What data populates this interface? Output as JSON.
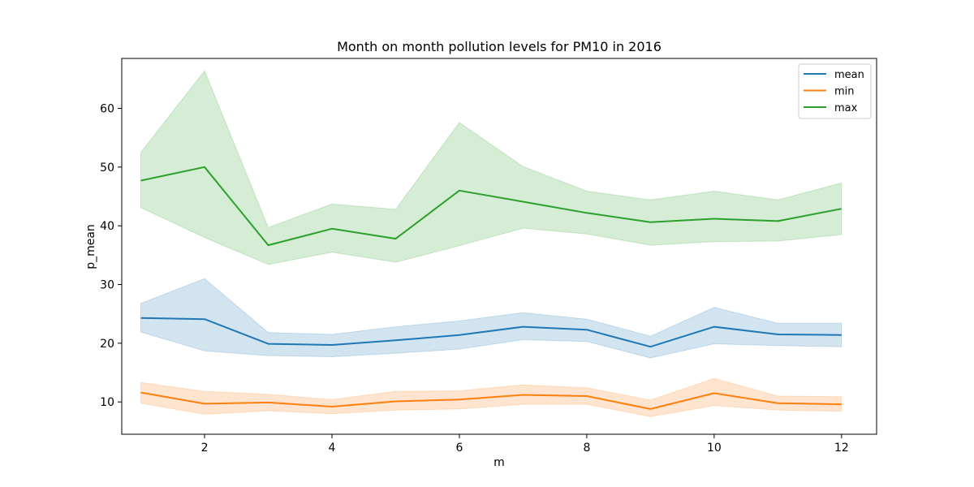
{
  "chart_data": {
    "type": "line",
    "title": "Month on month pollution levels for PM10 in 2016",
    "xlabel": "m",
    "ylabel": "p_mean",
    "x": [
      1,
      2,
      3,
      4,
      5,
      6,
      7,
      8,
      9,
      10,
      11,
      12
    ],
    "xlim": [
      0.7,
      12.55
    ],
    "ylim": [
      4.5,
      68.5
    ],
    "xticks": [
      2,
      4,
      6,
      8,
      10,
      12
    ],
    "yticks": [
      10,
      20,
      30,
      40,
      50,
      60
    ],
    "grid": false,
    "legend_position": "top-right",
    "series": [
      {
        "name": "mean",
        "color": "#1f77b4",
        "values": [
          24.3,
          24.1,
          19.9,
          19.7,
          20.5,
          21.4,
          22.8,
          22.3,
          19.4,
          22.8,
          21.5,
          21.4
        ],
        "ci_lower": [
          21.9,
          18.7,
          17.9,
          17.7,
          18.3,
          19.0,
          20.6,
          20.3,
          17.5,
          19.9,
          19.6,
          19.4
        ],
        "ci_upper": [
          26.8,
          31.0,
          21.8,
          21.5,
          22.8,
          23.8,
          25.2,
          24.1,
          21.2,
          26.1,
          23.4,
          23.4
        ]
      },
      {
        "name": "min",
        "color": "#ff7f0e",
        "values": [
          11.6,
          9.7,
          9.9,
          9.2,
          10.1,
          10.4,
          11.2,
          11.0,
          8.8,
          11.5,
          9.8,
          9.6
        ],
        "ci_lower": [
          9.8,
          7.9,
          8.5,
          8.0,
          8.6,
          8.8,
          9.6,
          9.6,
          7.5,
          9.4,
          8.6,
          8.4
        ],
        "ci_upper": [
          13.3,
          11.8,
          11.3,
          10.4,
          11.8,
          11.9,
          12.9,
          12.4,
          10.3,
          14.0,
          11.0,
          10.9
        ]
      },
      {
        "name": "max",
        "color": "#2ca02c",
        "values": [
          47.7,
          50.0,
          36.7,
          39.5,
          37.8,
          46.0,
          44.1,
          42.2,
          40.6,
          41.2,
          40.8,
          42.9
        ],
        "ci_lower": [
          43.1,
          38.0,
          33.4,
          35.5,
          33.8,
          36.6,
          39.6,
          38.6,
          36.7,
          37.3,
          37.4,
          38.5
        ],
        "ci_upper": [
          52.5,
          66.4,
          39.7,
          43.7,
          42.8,
          57.6,
          50.1,
          45.9,
          44.4,
          45.9,
          44.4,
          47.3
        ]
      }
    ]
  }
}
